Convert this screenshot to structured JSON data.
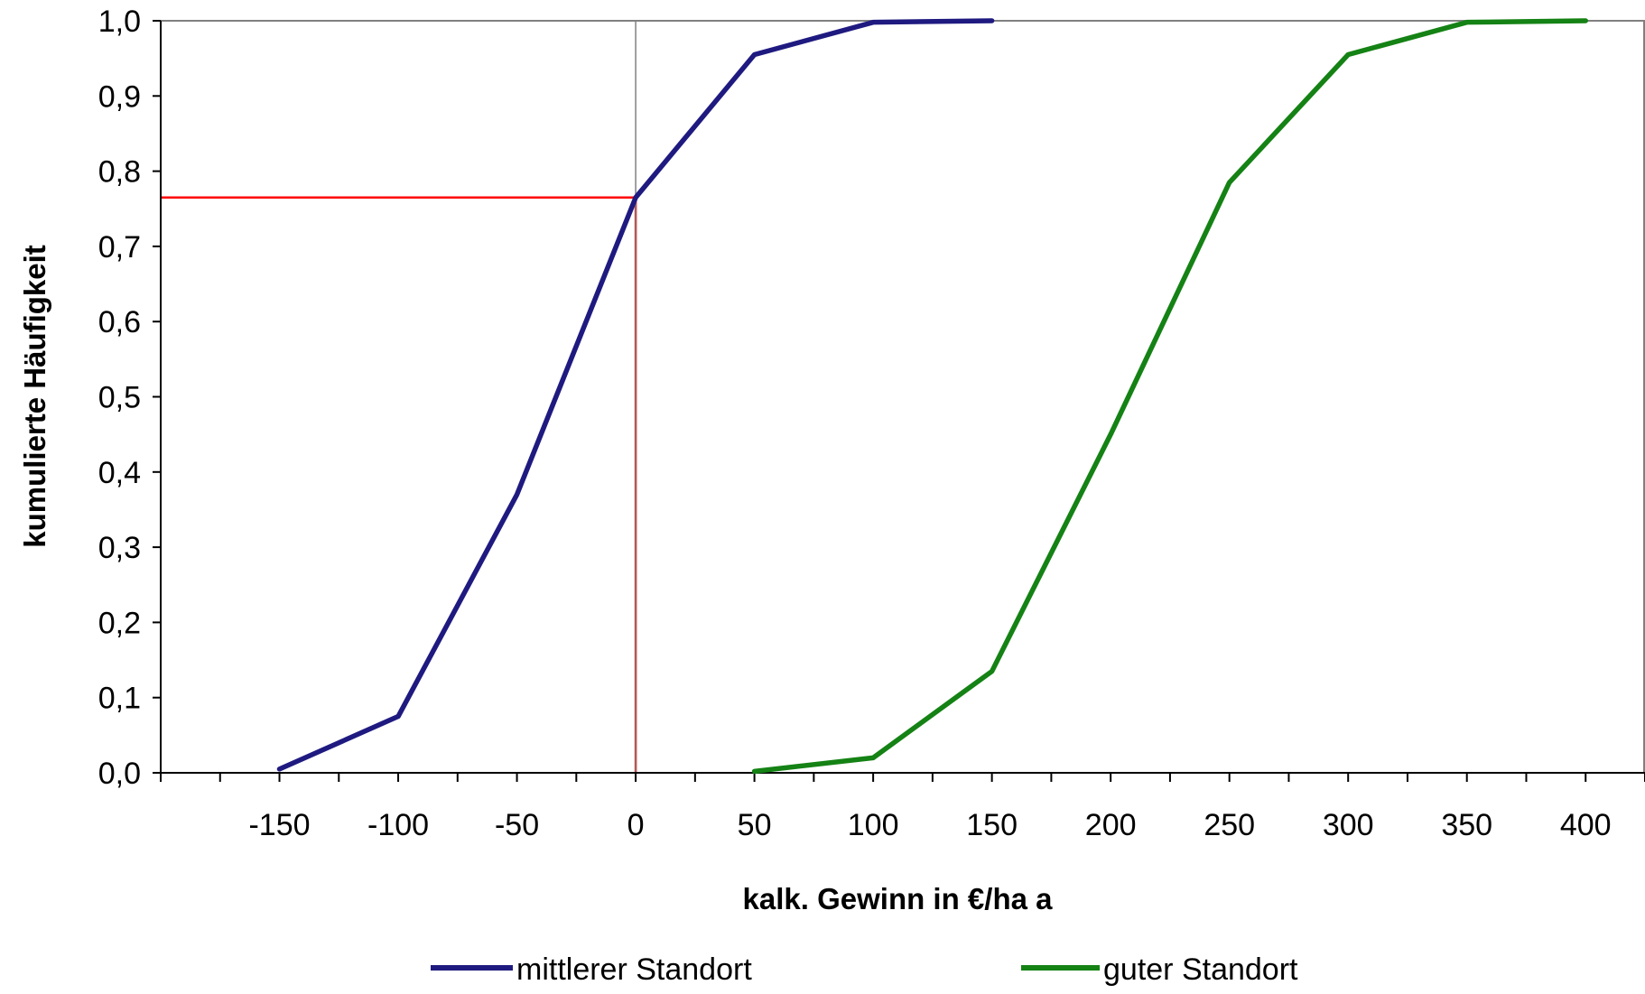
{
  "chart_data": {
    "type": "line",
    "xlabel": "kalk. Gewinn in €/ha a",
    "ylabel": "kumulierte Häufigkeit",
    "xlim": [
      -200,
      425
    ],
    "ylim": [
      0,
      1
    ],
    "x_ticks": [
      -150,
      -100,
      -50,
      0,
      50,
      100,
      150,
      200,
      250,
      300,
      350,
      400
    ],
    "x_tick_labels": [
      "-150",
      "-100",
      "-50",
      "0",
      "50",
      "100",
      "150",
      "200",
      "250",
      "300",
      "350",
      "400"
    ],
    "y_ticks": [
      0,
      0.1,
      0.2,
      0.3,
      0.4,
      0.5,
      0.6,
      0.7,
      0.8,
      0.9,
      1.0
    ],
    "y_tick_labels": [
      "0,0",
      "0,1",
      "0,2",
      "0,3",
      "0,4",
      "0,5",
      "0,6",
      "0,7",
      "0,8",
      "0,9",
      "1,0"
    ],
    "grid": false,
    "legend_position": "bottom",
    "series": [
      {
        "name": "mittlerer Standort",
        "color": "#1f1a80",
        "x": [
          -150,
          -100,
          -50,
          0,
          50,
          100,
          150
        ],
        "y": [
          0.005,
          0.075,
          0.37,
          0.765,
          0.955,
          0.998,
          1.0
        ]
      },
      {
        "name": "guter Standort",
        "color": "#148214",
        "x": [
          50,
          100,
          150,
          200,
          250,
          300,
          350,
          400
        ],
        "y": [
          0.002,
          0.02,
          0.135,
          0.45,
          0.785,
          0.955,
          0.998,
          1.0
        ]
      }
    ],
    "reference_lines": {
      "color": "#ff0000",
      "x": 0,
      "y": 0.765
    },
    "zero_line_color": "#808080"
  }
}
